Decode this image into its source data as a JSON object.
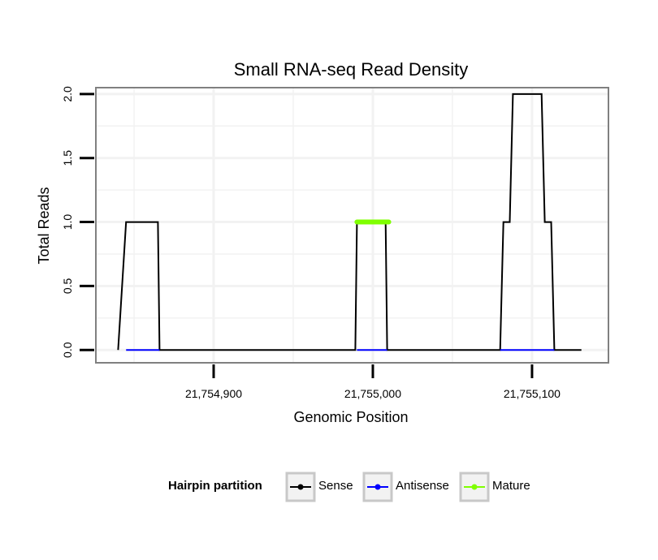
{
  "chart_data": {
    "type": "line",
    "title": "Small RNA-seq Read Density",
    "xlabel": "Genomic Position",
    "ylabel": "Total Reads",
    "xlim": [
      21754826,
      21755148
    ],
    "ylim": [
      -0.1,
      2.05
    ],
    "x_ticks": [
      {
        "value": 21754900,
        "label": "21,754,900"
      },
      {
        "value": 21755000,
        "label": "21,755,000"
      },
      {
        "value": 21755100,
        "label": "21,755,100"
      }
    ],
    "y_ticks": [
      {
        "value": 0.0,
        "label": "0.0"
      },
      {
        "value": 0.5,
        "label": "0.5"
      },
      {
        "value": 1.0,
        "label": "1.0"
      },
      {
        "value": 1.5,
        "label": "1.5"
      },
      {
        "value": 2.0,
        "label": "2.0"
      }
    ],
    "grid": true,
    "series": [
      {
        "name": "Sense",
        "color": "#000000",
        "x": [
          21754840,
          21754845,
          21754865,
          21754866,
          21754989,
          21754990,
          21755008,
          21755009,
          21755080,
          21755082,
          21755086,
          21755088,
          21755106,
          21755108,
          21755112,
          21755114,
          21755131
        ],
        "y": [
          0,
          1,
          1,
          0,
          0,
          1,
          1,
          0,
          0,
          1,
          1,
          2,
          2,
          1,
          1,
          0,
          0
        ]
      },
      {
        "name": "Antisense",
        "color": "#0000ff",
        "x": [
          21754845,
          21754866,
          21754990,
          21755009,
          21755080,
          21755114
        ],
        "y": [
          0,
          0,
          0,
          0,
          0,
          0
        ],
        "segments": [
          [
            21754845,
            21754866
          ],
          [
            21754990,
            21755009
          ],
          [
            21755080,
            21755114
          ]
        ]
      },
      {
        "name": "Mature",
        "color": "#7fff00",
        "x": [
          21754990,
          21755010
        ],
        "y": [
          1,
          1
        ]
      }
    ],
    "legend": {
      "title": "Hairpin partition",
      "position": "bottom",
      "entries": [
        "Sense",
        "Antisense",
        "Mature"
      ]
    }
  }
}
